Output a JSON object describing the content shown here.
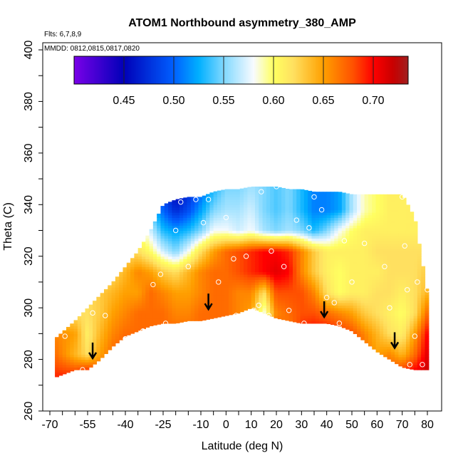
{
  "chart_data": {
    "type": "heatmap",
    "title": "ATOM1 Northbound asymmetry_380_AMP",
    "annotations": [
      "Flts: 6,7,8,9",
      "MMDD: 0812,0815,0817,0820"
    ],
    "xlabel": "Latitude (deg N)",
    "ylabel": "Theta (C)",
    "xlim": [
      -70,
      80
    ],
    "ylim": [
      260,
      400
    ],
    "x_ticks": [
      -70,
      -55,
      -40,
      -25,
      -10,
      0,
      10,
      20,
      30,
      40,
      50,
      60,
      70,
      80
    ],
    "y_ticks": [
      260,
      280,
      300,
      320,
      340,
      360,
      380,
      400
    ],
    "colorbar": {
      "range": [
        0.4,
        0.735
      ],
      "ticks": [
        0.45,
        0.5,
        0.55,
        0.6,
        0.65,
        0.7
      ],
      "tick_labels": [
        "0.45",
        "0.50",
        "0.55",
        "0.60",
        "0.65",
        "0.70"
      ],
      "colors": [
        [
          0.4,
          "#7a00e8"
        ],
        [
          0.45,
          "#0000b8"
        ],
        [
          0.5,
          "#0060ff"
        ],
        [
          0.525,
          "#00b0ff"
        ],
        [
          0.55,
          "#80d8ff"
        ],
        [
          0.58,
          "#f8fbff"
        ],
        [
          0.6,
          "#ffff60"
        ],
        [
          0.62,
          "#ffe060"
        ],
        [
          0.65,
          "#ffa000"
        ],
        [
          0.68,
          "#ff5000"
        ],
        [
          0.7,
          "#ff0000"
        ],
        [
          0.72,
          "#c80000"
        ],
        [
          0.735,
          "#a02020"
        ]
      ]
    },
    "field": {
      "lat": [
        -68,
        -60,
        -55,
        -50,
        -45,
        -40,
        -35,
        -30,
        -25,
        -20,
        -15,
        -10,
        -5,
        0,
        5,
        10,
        15,
        20,
        25,
        30,
        35,
        40,
        45,
        50,
        55,
        60,
        65,
        70,
        75,
        80
      ],
      "theta": [
        274,
        282,
        290,
        298,
        306,
        314,
        322,
        330,
        338,
        346
      ],
      "bottom": [
        273,
        276,
        276,
        280,
        285,
        289,
        291,
        293,
        294,
        294,
        295,
        295,
        296,
        297,
        298,
        300,
        298,
        296,
        295,
        294,
        294,
        294,
        293,
        291,
        287,
        283,
        280,
        277,
        276,
        276
      ],
      "top": [
        288,
        295,
        300,
        305,
        310,
        316,
        322,
        330,
        340,
        342,
        343,
        343,
        345,
        346,
        346,
        347,
        347,
        347,
        346,
        346,
        345,
        345,
        345,
        344,
        344,
        344,
        344,
        344,
        335,
        306
      ],
      "values": [
        [
          0.69,
          0.69,
          0.71,
          0.68,
          0.68,
          0.69,
          0.68,
          0.69,
          0.68,
          0.67,
          0.67,
          0.67,
          0.67,
          0.67,
          0.67,
          0.66,
          0.66,
          0.68,
          0.66,
          0.7,
          0.71,
          0.71,
          0.7,
          0.7,
          0.68,
          0.69,
          0.68,
          0.7,
          0.71,
          0.72
        ],
        [
          0.67,
          0.64,
          0.62,
          0.65,
          0.67,
          0.68,
          0.67,
          0.68,
          0.67,
          0.67,
          0.67,
          0.67,
          0.67,
          0.67,
          0.67,
          0.66,
          0.66,
          0.68,
          0.66,
          0.7,
          0.71,
          0.71,
          0.7,
          0.7,
          0.67,
          0.65,
          0.66,
          0.64,
          0.67,
          0.71
        ],
        [
          0.66,
          0.65,
          0.61,
          0.64,
          0.66,
          0.67,
          0.67,
          0.67,
          0.67,
          0.67,
          0.67,
          0.67,
          0.67,
          0.67,
          0.67,
          0.66,
          0.66,
          0.68,
          0.66,
          0.69,
          0.7,
          0.7,
          0.69,
          0.68,
          0.66,
          0.64,
          0.62,
          0.61,
          0.65,
          0.7
        ],
        [
          0.62,
          0.62,
          0.62,
          0.63,
          0.65,
          0.66,
          0.67,
          0.67,
          0.67,
          0.66,
          0.66,
          0.67,
          0.67,
          0.67,
          0.66,
          0.65,
          0.58,
          0.66,
          0.67,
          0.68,
          0.68,
          0.67,
          0.66,
          0.65,
          0.63,
          0.62,
          0.61,
          0.6,
          0.62,
          0.67
        ],
        [
          0.58,
          0.6,
          0.62,
          0.63,
          0.64,
          0.65,
          0.65,
          0.67,
          0.66,
          0.65,
          0.65,
          0.66,
          0.67,
          0.67,
          0.66,
          0.66,
          0.62,
          0.68,
          0.68,
          0.68,
          0.66,
          0.62,
          0.6,
          0.61,
          0.61,
          0.62,
          0.62,
          0.61,
          0.62,
          0.64
        ],
        [
          0.58,
          0.58,
          0.59,
          0.6,
          0.62,
          0.64,
          0.66,
          0.65,
          0.63,
          0.62,
          0.64,
          0.66,
          0.67,
          0.67,
          0.68,
          0.69,
          0.7,
          0.71,
          0.7,
          0.66,
          0.63,
          0.61,
          0.6,
          0.61,
          0.61,
          0.61,
          0.62,
          0.62,
          0.62,
          0.63
        ],
        [
          0.58,
          0.58,
          0.58,
          0.59,
          0.61,
          0.62,
          0.62,
          0.6,
          0.57,
          0.55,
          0.58,
          0.62,
          0.65,
          0.67,
          0.68,
          0.69,
          0.7,
          0.7,
          0.69,
          0.66,
          0.63,
          0.61,
          0.61,
          0.61,
          0.61,
          0.62,
          0.62,
          0.62,
          0.62,
          0.62
        ],
        [
          0.58,
          0.58,
          0.58,
          0.58,
          0.59,
          0.6,
          0.6,
          0.57,
          0.53,
          0.52,
          0.53,
          0.55,
          0.58,
          0.58,
          0.57,
          0.58,
          0.56,
          0.55,
          0.56,
          0.55,
          0.53,
          0.55,
          0.58,
          0.6,
          0.61,
          0.61,
          0.61,
          0.61,
          0.61,
          0.61
        ],
        [
          0.58,
          0.58,
          0.58,
          0.58,
          0.58,
          0.58,
          0.57,
          0.54,
          0.5,
          0.47,
          0.49,
          0.52,
          0.55,
          0.56,
          0.56,
          0.57,
          0.55,
          0.54,
          0.55,
          0.53,
          0.51,
          0.51,
          0.52,
          0.56,
          0.59,
          0.6,
          0.61,
          0.61,
          0.61,
          0.61
        ],
        [
          0.58,
          0.58,
          0.58,
          0.58,
          0.58,
          0.58,
          0.57,
          0.53,
          0.48,
          0.45,
          0.47,
          0.5,
          0.53,
          0.55,
          0.55,
          0.56,
          0.55,
          0.54,
          0.55,
          0.53,
          0.51,
          0.51,
          0.52,
          0.56,
          0.59,
          0.6,
          0.61,
          0.61,
          0.61,
          0.61
        ]
      ]
    },
    "sample_points": [
      [
        -64,
        289
      ],
      [
        -57,
        276
      ],
      [
        -53,
        298
      ],
      [
        -50,
        276
      ],
      [
        -48,
        297
      ],
      [
        -40,
        288
      ],
      [
        -33,
        291
      ],
      [
        -29,
        309
      ],
      [
        -26,
        313
      ],
      [
        -24,
        294
      ],
      [
        -20,
        330
      ],
      [
        -18,
        341
      ],
      [
        -12,
        342
      ],
      [
        -15,
        316
      ],
      [
        -9,
        333
      ],
      [
        -7,
        342
      ],
      [
        -3,
        310
      ],
      [
        0,
        335
      ],
      [
        3,
        319
      ],
      [
        4,
        297
      ],
      [
        8,
        320
      ],
      [
        11,
        299
      ],
      [
        13,
        301
      ],
      [
        14,
        345
      ],
      [
        17,
        297
      ],
      [
        18,
        322
      ],
      [
        20,
        347
      ],
      [
        23,
        316
      ],
      [
        25,
        299
      ],
      [
        28,
        334
      ],
      [
        31,
        294
      ],
      [
        33,
        331
      ],
      [
        35,
        343
      ],
      [
        38,
        338
      ],
      [
        40,
        304
      ],
      [
        43,
        302
      ],
      [
        45,
        294
      ],
      [
        47,
        326
      ],
      [
        50,
        310
      ],
      [
        55,
        325
      ],
      [
        63,
        316
      ],
      [
        65,
        300
      ],
      [
        70,
        343
      ],
      [
        71,
        324
      ],
      [
        72,
        307
      ],
      [
        73,
        278
      ],
      [
        75,
        289
      ],
      [
        76,
        310
      ],
      [
        78,
        278
      ],
      [
        80,
        307
      ]
    ],
    "arrows": [
      [
        -53,
        281
      ],
      [
        -7,
        300
      ],
      [
        39,
        297
      ],
      [
        67,
        285
      ]
    ]
  }
}
